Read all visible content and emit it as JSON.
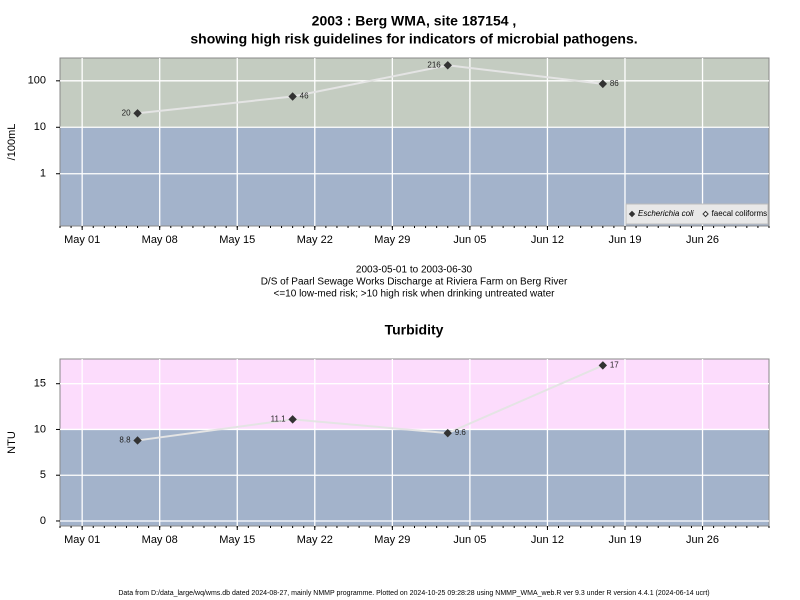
{
  "chart_data": [
    {
      "type": "line",
      "title": [
        "2003 : Berg WMA, site 187154 ,",
        "showing high risk guidelines for indicators of microbial pathogens."
      ],
      "ylabel": "/100mL",
      "log_y": true,
      "x": [
        "2003-05-06",
        "2003-05-20",
        "2003-06-03",
        "2003-06-17"
      ],
      "series": [
        {
          "name": "Escherichia coli",
          "color": "#333333",
          "marker": "filled",
          "values": [
            20,
            46,
            216,
            86
          ]
        },
        {
          "name": "faecal coliforms",
          "color": "#333333",
          "marker": "open",
          "values": [
            null,
            null,
            null,
            null
          ]
        }
      ],
      "line_color": "#e4e4e4",
      "threshold": 10,
      "above_color": "#c4ccc1",
      "below_color": "#a3b3cb",
      "xlim": [
        "2003-04-29",
        "2003-07-02"
      ],
      "xticks": [
        {
          "value": "2003-05-01",
          "label": "May 01"
        },
        {
          "value": "2003-05-08",
          "label": "May 08"
        },
        {
          "value": "2003-05-15",
          "label": "May 15"
        },
        {
          "value": "2003-05-22",
          "label": "May 22"
        },
        {
          "value": "2003-05-29",
          "label": "May 29"
        },
        {
          "value": "2003-06-05",
          "label": "Jun 05"
        },
        {
          "value": "2003-06-12",
          "label": "Jun 12"
        },
        {
          "value": "2003-06-19",
          "label": "Jun 19"
        },
        {
          "value": "2003-06-26",
          "label": "Jun 26"
        }
      ],
      "ylim": [
        0.075,
        310
      ],
      "yticks": [
        1,
        10,
        100
      ],
      "grid": true,
      "legend": "lower right",
      "caption": [
        "2003-05-01 to 2003-06-30",
        "D/S of Paarl Sewage Works Discharge at Riviera Farm on Berg River",
        "<=10 low-med risk; >10 high risk when drinking untreated water"
      ]
    },
    {
      "type": "line",
      "title": [
        "Turbidity"
      ],
      "ylabel": "NTU",
      "log_y": false,
      "x": [
        "2003-05-06",
        "2003-05-20",
        "2003-06-03",
        "2003-06-17"
      ],
      "series": [
        {
          "color": "#333333",
          "marker": "filled",
          "values": [
            8.8,
            11.1,
            9.6,
            17
          ]
        }
      ],
      "line_color": "#e4e4e4",
      "threshold": 10,
      "above_color": "#fcdcfc",
      "below_color": "#a3b3cb",
      "xlim": [
        "2003-04-29",
        "2003-07-02"
      ],
      "xticks": [
        {
          "value": "2003-05-01",
          "label": "May 01"
        },
        {
          "value": "2003-05-08",
          "label": "May 08"
        },
        {
          "value": "2003-05-15",
          "label": "May 15"
        },
        {
          "value": "2003-05-22",
          "label": "May 22"
        },
        {
          "value": "2003-05-29",
          "label": "May 29"
        },
        {
          "value": "2003-06-05",
          "label": "Jun 05"
        },
        {
          "value": "2003-06-12",
          "label": "Jun 12"
        },
        {
          "value": "2003-06-19",
          "label": "Jun 19"
        },
        {
          "value": "2003-06-26",
          "label": "Jun 26"
        }
      ],
      "ylim": [
        -0.55,
        17.7
      ],
      "yticks": [
        0,
        5,
        10,
        15
      ],
      "grid": true
    }
  ],
  "footer": "Data from D:/data_large/wq/wms.db dated 2024-08-27, mainly NMMP programme. Plotted on 2024-10-25 09:28:28 using NMMP_WMA_web.R ver 9.3 under R version 4.4.1 (2024-06-14 ucrt)"
}
